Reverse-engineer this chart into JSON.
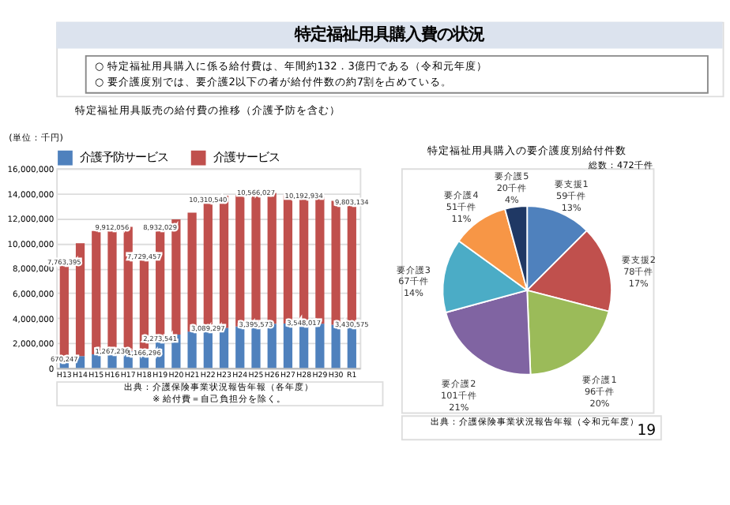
{
  "chart_data": [
    {
      "type": "bar",
      "title": "特定福祉用具販売の給付費の推移（介護予防を含む）",
      "ylabel": "(単位：千円)",
      "stacked": true,
      "legend": "top",
      "grid": "y",
      "annotations": [
        "特定福祉用具購入費の状況",
        "○  特定福祉用具購入に係る給付費は、年間約132．3億円である（令和元年度）",
        "○  要介護度別では、要介護2以下の者が給付件数の約7割を占めている。",
        "出典：介護保険事業状況報告年報（各年度）",
        "※  給付費＝自己負担分を除く。"
      ],
      "categories": [
        "H13",
        "H14",
        "H15",
        "H16",
        "H17",
        "H18",
        "H19",
        "H20",
        "H21",
        "H22",
        "H23",
        "H24",
        "H25",
        "H26",
        "H27",
        "H28",
        "H29",
        "H30",
        "R1"
      ],
      "ylim": [
        0,
        16000000
      ],
      "yticks": [
        0,
        {
          "value": 2000000,
          "label": "2,000,000"
        },
        {
          "value": 4000000,
          "label": "4,000,000"
        },
        {
          "value": 6000000,
          "label": "6,000,000"
        },
        {
          "value": 8000000,
          "label": "8,000,000"
        },
        {
          "value": 10000000,
          "label": "10,000,000"
        },
        {
          "value": 12000000,
          "label": "12,000,000"
        },
        {
          "value": 14000000,
          "label": "14,000,000"
        },
        {
          "value": 16000000,
          "label": "16,000,000"
        }
      ],
      "series": [
        {
          "name": "介護予防サービス",
          "color": "#4f81bd",
          "values": [
            670247,
            950000,
            1100000,
            1267236,
            1350000,
            1166296,
            2273541,
            2680000,
            2920000,
            3089297,
            3220000,
            3320000,
            3395573,
            3540000,
            3560000,
            3548017,
            3550000,
            3470000,
            3430575
          ],
          "value_labels": [
            "670,247",
            null,
            null,
            "1,267,236",
            null,
            "1,166,296",
            "2,273,541",
            null,
            null,
            "3,089,297",
            null,
            null,
            "3,395,573",
            null,
            null,
            "3,548,017",
            null,
            null,
            "3,430,575"
          ]
        },
        {
          "name": "介護サービス",
          "color": "#c0504d",
          "values": [
            7763395,
            9050000,
            9870000,
            9912056,
            9950000,
            7729457,
            8932029,
            9220000,
            9530000,
            10310540,
            10580000,
            10530000,
            10566027,
            10480000,
            10270000,
            10192934,
            10160000,
            9930000,
            9803134
          ],
          "value_labels": [
            "7,763,395",
            null,
            null,
            "9,912,056",
            null,
            "7,729,457",
            "8,932,029",
            null,
            null,
            "10,310,540",
            null,
            null,
            "10,566,027",
            null,
            null,
            "10,192,934",
            null,
            null,
            "9,803,134"
          ]
        }
      ]
    },
    {
      "type": "pie",
      "title": "特定福祉用具購入の要介護度別給付件数",
      "annotations": [
        "総数：472千件",
        "出典：介護保険事業状況報告年報（令和元年度）",
        "19"
      ],
      "categories": [
        "要支援1",
        "要支援2",
        "要介護1",
        "要介護2",
        "要介護3",
        "要介護4",
        "要介護5"
      ],
      "values": [
        59,
        78,
        96,
        101,
        67,
        51,
        20
      ],
      "value_labels": [
        "59千件\n13%",
        "78千件\n17%",
        "96千件\n20%",
        "101千件\n21%",
        "67千件\n14%",
        "51千件\n11%",
        "20千件\n4%"
      ],
      "colors": [
        "#4f81bd",
        "#c0504d",
        "#9bbb59",
        "#8064a2",
        "#4bacc6",
        "#f79646",
        "#1f3864"
      ]
    }
  ]
}
